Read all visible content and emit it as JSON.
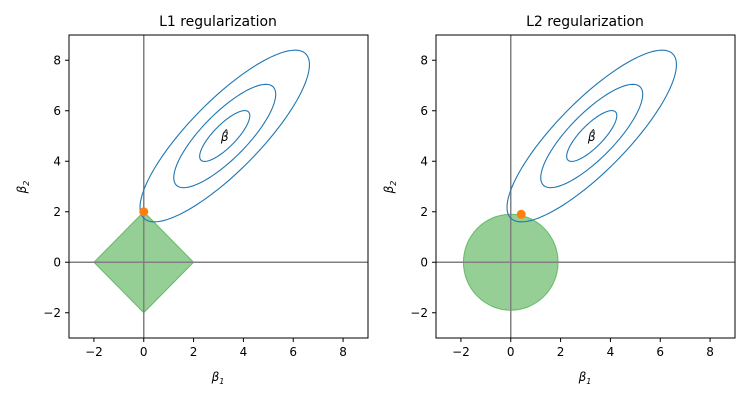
{
  "chart_data": [
    {
      "type": "contour",
      "title": "L1 regularization",
      "xlabel": "β",
      "xlabel_sub": "1",
      "ylabel": "β",
      "ylabel_sub": "2",
      "xlim": [
        -3,
        9
      ],
      "ylim": [
        -3,
        9
      ],
      "xticks": [
        -2,
        0,
        2,
        4,
        6,
        8
      ],
      "yticks": [
        -2,
        0,
        2,
        4,
        6,
        8
      ],
      "xtick_labels": [
        "−2",
        "0",
        "2",
        "4",
        "6",
        "8"
      ],
      "ytick_labels": [
        "−2",
        "0",
        "2",
        "4",
        "6",
        "8"
      ],
      "beta_hat": {
        "x": 3.25,
        "y": 5.0,
        "label": "β̂"
      },
      "constraint": {
        "shape": "diamond",
        "radius": 2
      },
      "solution_point": {
        "x": 0,
        "y": 2
      },
      "reference_lines": {
        "x": 0,
        "y": 0
      },
      "contours": [
        {
          "a": 1.35,
          "b": 0.45,
          "angle_deg": 45
        },
        {
          "a": 2.75,
          "b": 0.9,
          "angle_deg": 45
        },
        {
          "a": 4.6,
          "b": 1.4,
          "angle_deg": 45
        }
      ],
      "colors": {
        "contour": "#1f77b4",
        "region": "#2ca02c",
        "point": "#ff7f0e",
        "refline": "#808080"
      }
    },
    {
      "type": "contour",
      "title": "L2 regularization",
      "xlabel": "β",
      "xlabel_sub": "1",
      "ylabel": "β",
      "ylabel_sub": "2",
      "xlim": [
        -3,
        9
      ],
      "ylim": [
        -3,
        9
      ],
      "xticks": [
        -2,
        0,
        2,
        4,
        6,
        8
      ],
      "yticks": [
        -2,
        0,
        2,
        4,
        6,
        8
      ],
      "xtick_labels": [
        "−2",
        "0",
        "2",
        "4",
        "6",
        "8"
      ],
      "ytick_labels": [
        "−2",
        "0",
        "2",
        "4",
        "6",
        "8"
      ],
      "beta_hat": {
        "x": 3.25,
        "y": 5.0,
        "label": "β̂"
      },
      "constraint": {
        "shape": "circle",
        "radius": 1.9
      },
      "solution_point": {
        "x": 0.42,
        "y": 1.9
      },
      "reference_lines": {
        "x": 0,
        "y": 0
      },
      "contours": [
        {
          "a": 1.35,
          "b": 0.45,
          "angle_deg": 45
        },
        {
          "a": 2.75,
          "b": 0.9,
          "angle_deg": 45
        },
        {
          "a": 4.6,
          "b": 1.4,
          "angle_deg": 45
        }
      ],
      "colors": {
        "contour": "#1f77b4",
        "region": "#2ca02c",
        "point": "#ff7f0e",
        "refline": "#808080"
      }
    }
  ]
}
